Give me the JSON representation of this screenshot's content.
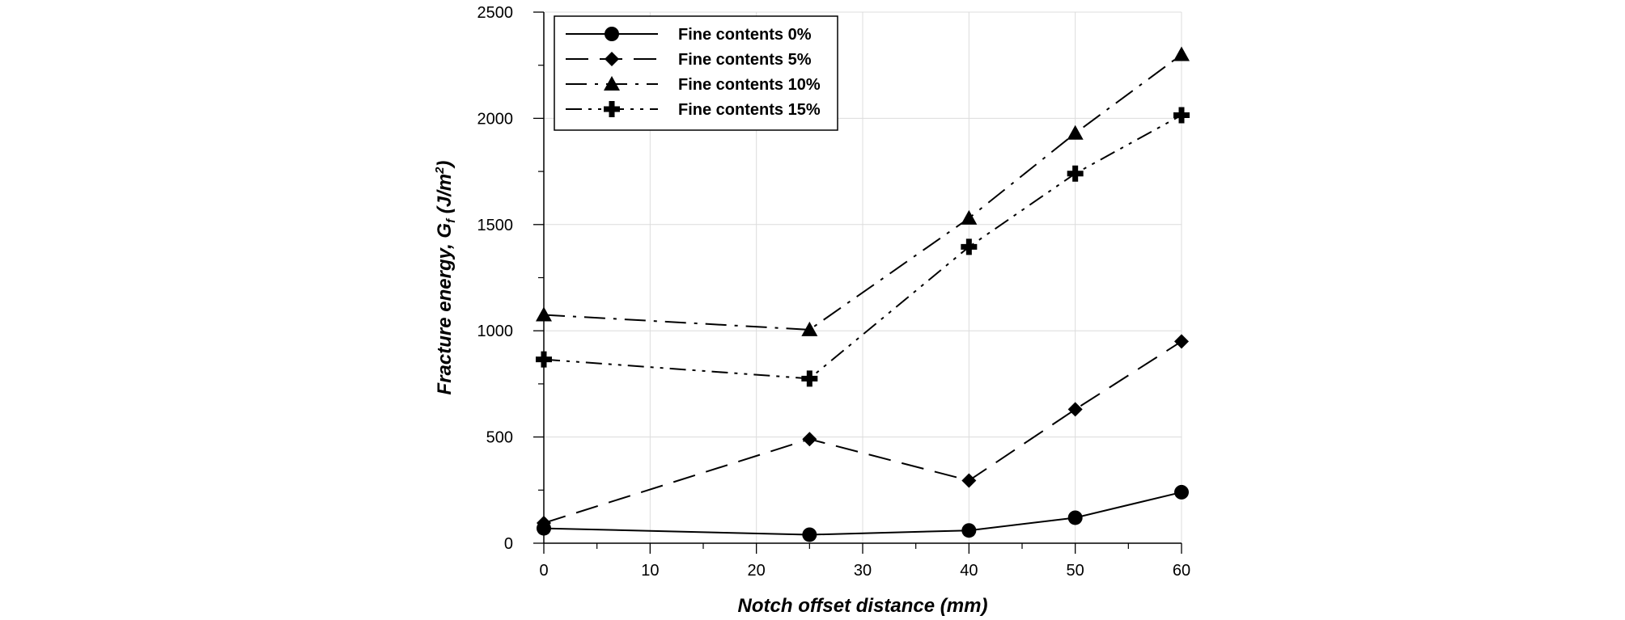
{
  "chart_data": {
    "type": "line",
    "x_values": [
      0,
      25,
      40,
      50,
      60
    ],
    "xlim": [
      0,
      60
    ],
    "ylim": [
      0,
      2500
    ],
    "x_ticks": [
      0,
      10,
      20,
      30,
      40,
      50,
      60
    ],
    "y_ticks": [
      0,
      500,
      1000,
      1500,
      2000,
      2500
    ],
    "xlabel": "Notch offset distance (mm)",
    "ylabel": {
      "prefix": "Fracture energy, ",
      "symbol": "G",
      "subscript": "f",
      "unit_open": " (J/m",
      "unit_exponent": "2",
      "unit_close": ")"
    },
    "grid": true,
    "legend_position": "top-left",
    "series": [
      {
        "name": "Fine contents 0%",
        "marker": "circle",
        "dash": "solid",
        "values": [
          70,
          40,
          60,
          120,
          240
        ]
      },
      {
        "name": "Fine contents 5%",
        "marker": "diamond",
        "dash": "long-dash",
        "values": [
          95,
          490,
          295,
          630,
          950
        ]
      },
      {
        "name": "Fine contents 10%",
        "marker": "triangle",
        "dash": "dash-dot",
        "values": [
          1075,
          1005,
          1530,
          1930,
          2300
        ]
      },
      {
        "name": "Fine contents 15%",
        "marker": "plus",
        "dash": "dash-dot-dot",
        "values": [
          865,
          775,
          1395,
          1740,
          2015
        ]
      }
    ]
  }
}
